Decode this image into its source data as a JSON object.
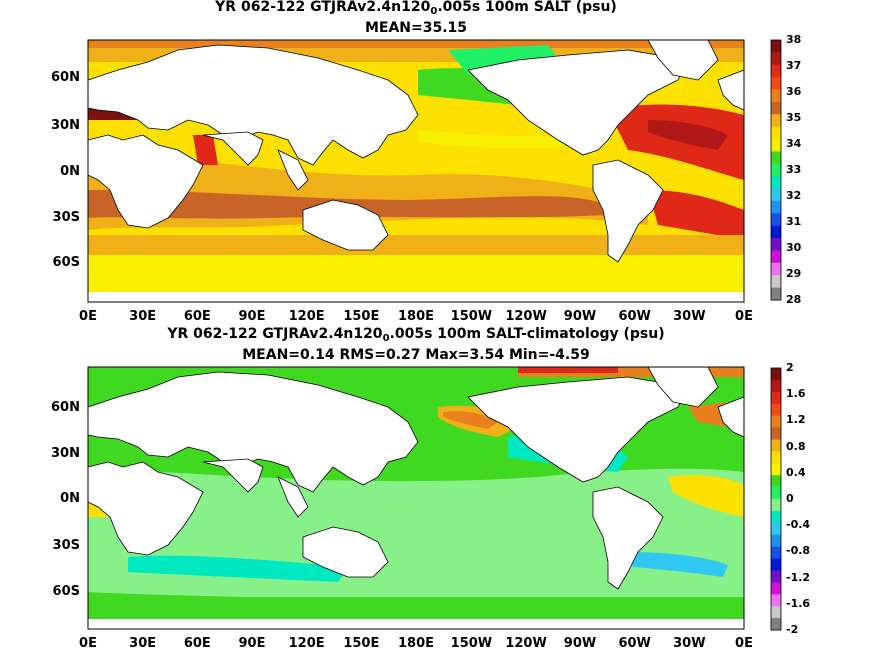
{
  "top_panel": {
    "title_prefix": "YR 062-122 GTJRAv2.4n120",
    "title_sub": "0",
    "title_suffix": ".005s 100m SALT (psu)",
    "stats": "MEAN=35.15",
    "colorbar_ticks": [
      "38",
      "37",
      "36",
      "35",
      "34",
      "33",
      "32",
      "31",
      "30",
      "29",
      "28"
    ],
    "colorbar_colors": [
      "#7a1010",
      "#b01818",
      "#e02818",
      "#f04818",
      "#e88020",
      "#c86428",
      "#f0b018",
      "#fbe000",
      "#f8f000",
      "#40d820",
      "#20f068",
      "#00e8c0",
      "#30c8f0",
      "#2090f0",
      "#1850e8",
      "#0018d8",
      "#7010c8",
      "#d010d8",
      "#f070f0",
      "#c8c8c8",
      "#808080"
    ]
  },
  "bottom_panel": {
    "title_prefix": "YR 062-122 GTJRAv2.4n120",
    "title_sub": "0",
    "title_suffix": ".005s 100m SALT-climatology (psu)",
    "stats": "MEAN=0.14   RMS=0.27   Max=3.54   Min=-4.59",
    "colorbar_ticks": [
      "2",
      "1.6",
      "1.2",
      "0.8",
      "0.4",
      "0",
      "-0.4",
      "-0.8",
      "-1.2",
      "-1.6",
      "-2"
    ],
    "colorbar_colors": [
      "#7a1010",
      "#b01818",
      "#e02818",
      "#f04818",
      "#e88020",
      "#c86428",
      "#f0b018",
      "#fbe000",
      "#f8f000",
      "#40d820",
      "#20f068",
      "#88f088",
      "#00e8c0",
      "#30c8f0",
      "#2090f0",
      "#1850e8",
      "#0018d8",
      "#7010c8",
      "#d010d8",
      "#f070f0",
      "#c8c8c8",
      "#808080"
    ]
  },
  "lat_labels": [
    "60N",
    "30N",
    "0N",
    "30S",
    "60S"
  ],
  "lon_labels": [
    "0E",
    "30E",
    "60E",
    "90E",
    "120E",
    "150E",
    "180E",
    "150W",
    "120W",
    "90W",
    "60W",
    "30W",
    "0E"
  ]
}
